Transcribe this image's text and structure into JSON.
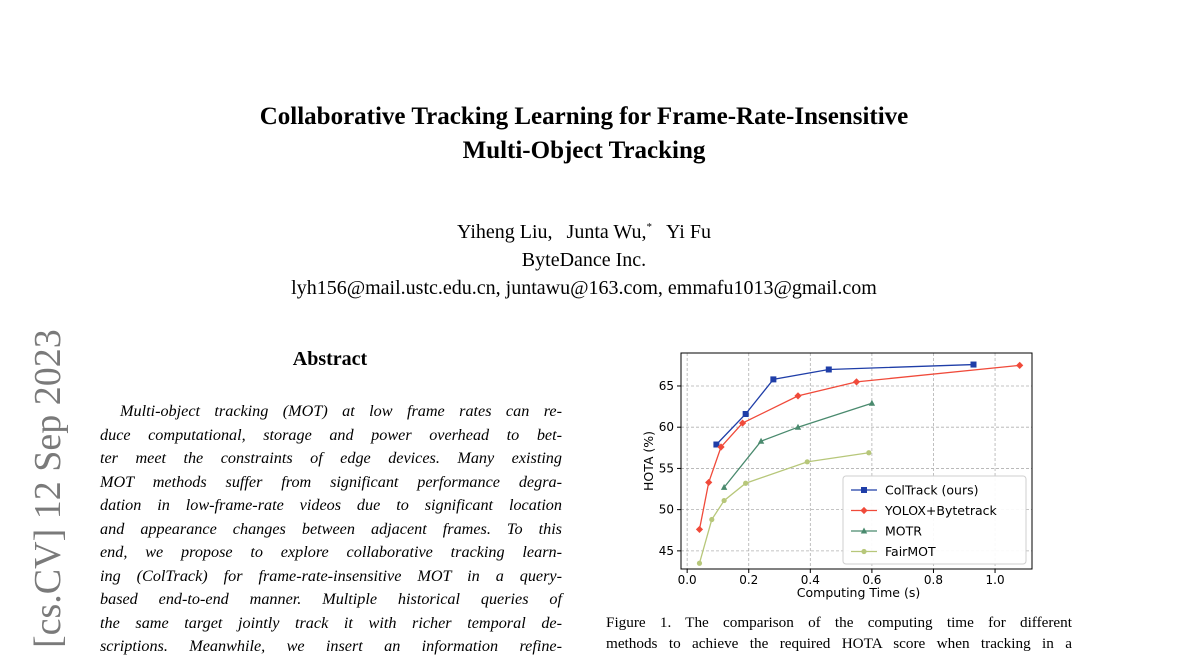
{
  "title_lines": [
    "Collaborative Tracking Learning for Frame-Rate-Insensitive",
    "Multi-Object Tracking"
  ],
  "authors": {
    "names": [
      "Yiheng Liu,",
      "Junta Wu,",
      "Yi Fu"
    ],
    "marker": "*",
    "affiliation": "ByteDance Inc.",
    "emails": "lyh156@mail.ustc.edu.cn, juntawu@163.com, emmafu1013@gmail.com"
  },
  "arxiv_stamp": "[cs.CV]  12 Sep 2023",
  "abstract": {
    "heading": "Abstract",
    "lines": [
      "Multi-object tracking (MOT) at low frame rates can re-",
      "duce computational, storage and power overhead to bet-",
      "ter meet the constraints of edge devices.  Many existing",
      "MOT methods suffer from significant performance degra-",
      "dation in low-frame-rate videos due to significant location",
      "and appearance changes between adjacent frames. To this",
      "end, we propose to explore collaborative tracking learn-",
      "ing (ColTrack) for frame-rate-insensitive MOT in a query-",
      "based end-to-end manner.  Multiple historical queries of",
      "the same target jointly track it with richer temporal de-",
      "scriptions.  Meanwhile, we insert an information refine-"
    ]
  },
  "figure": {
    "caption_lines": [
      "Figure 1. The comparison of the computing time for different",
      "methods to achieve the required HOTA score when tracking in a"
    ]
  },
  "chart_data": {
    "type": "line",
    "xlabel": "Computing Time (s)",
    "ylabel": "HOTA (%)",
    "xlim": [
      -0.02,
      1.12
    ],
    "ylim": [
      42.8,
      69.0
    ],
    "xticks": [
      "0.0",
      "0.2",
      "0.4",
      "0.6",
      "0.8",
      "1.0"
    ],
    "xtick_values": [
      0.0,
      0.2,
      0.4,
      0.6,
      0.8,
      1.0
    ],
    "yticks": [
      "45",
      "50",
      "55",
      "60",
      "65"
    ],
    "ytick_values": [
      45,
      50,
      55,
      60,
      65
    ],
    "grid": true,
    "legend_position": "lower-right",
    "series": [
      {
        "name": "ColTrack (ours)",
        "color": "#1f3ea8",
        "marker": "square",
        "x": [
          0.095,
          0.19,
          0.28,
          0.46,
          0.93
        ],
        "y": [
          57.9,
          61.6,
          65.8,
          67.0,
          67.6
        ]
      },
      {
        "name": "YOLOX+Bytetrack",
        "color": "#f04a3a",
        "marker": "diamond",
        "x": [
          0.04,
          0.07,
          0.11,
          0.18,
          0.36,
          0.55,
          1.08
        ],
        "y": [
          47.6,
          53.3,
          57.6,
          60.5,
          63.8,
          65.5,
          67.5
        ]
      },
      {
        "name": "MOTR",
        "color": "#4a8a6e",
        "marker": "triangle",
        "x": [
          0.12,
          0.24,
          0.36,
          0.6
        ],
        "y": [
          52.7,
          58.3,
          60.0,
          62.9
        ]
      },
      {
        "name": "FairMOT",
        "color": "#b7c77a",
        "marker": "circle",
        "x": [
          0.04,
          0.08,
          0.12,
          0.19,
          0.39,
          0.59
        ],
        "y": [
          43.5,
          48.8,
          51.1,
          53.2,
          55.8,
          56.9
        ]
      }
    ]
  }
}
